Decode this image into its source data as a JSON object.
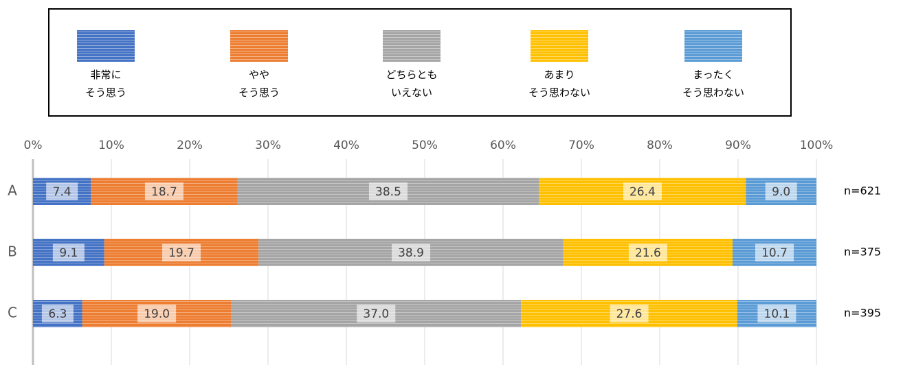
{
  "chart_data": {
    "type": "stacked_barh",
    "categories": [
      "A",
      "B",
      "C"
    ],
    "n_labels": [
      "n=621",
      "n=375",
      "n=395"
    ],
    "series": [
      {
        "name": "非常に\nそう思う",
        "color": "#4472c4",
        "values": [
          7.4,
          9.1,
          6.3
        ],
        "value_labels": [
          "7.4",
          "9.1",
          "6.3"
        ]
      },
      {
        "name": "やや\nそう思う",
        "color": "#ed7d31",
        "values": [
          18.7,
          19.7,
          19.0
        ],
        "value_labels": [
          "18.7",
          "19.7",
          "19.0"
        ]
      },
      {
        "name": "どちらとも\nいえない",
        "color": "#a5a5a5",
        "values": [
          38.5,
          38.9,
          37.0
        ],
        "value_labels": [
          "38.5",
          "38.9",
          "37.0"
        ]
      },
      {
        "name": "あまり\nそう思わない",
        "color": "#ffc000",
        "values": [
          26.4,
          21.6,
          27.6
        ],
        "value_labels": [
          "26.4",
          "21.6",
          "27.6"
        ]
      },
      {
        "name": "まったく\nそう思わない",
        "color": "#5b9bd5",
        "values": [
          9.0,
          10.7,
          10.1
        ],
        "value_labels": [
          "9.0",
          "10.7",
          "10.1"
        ]
      }
    ],
    "xlim": [
      0,
      100
    ],
    "xticks": [
      {
        "value": 0,
        "label": "0%"
      },
      {
        "value": 10,
        "label": "10%"
      },
      {
        "value": 20,
        "label": "20%"
      },
      {
        "value": 30,
        "label": "30%"
      },
      {
        "value": 40,
        "label": "40%"
      },
      {
        "value": 50,
        "label": "50%"
      },
      {
        "value": 60,
        "label": "60%"
      },
      {
        "value": 70,
        "label": "70%"
      },
      {
        "value": 80,
        "label": "80%"
      },
      {
        "value": 90,
        "label": "90%"
      },
      {
        "value": 100,
        "label": "100%"
      }
    ],
    "grid": true
  }
}
